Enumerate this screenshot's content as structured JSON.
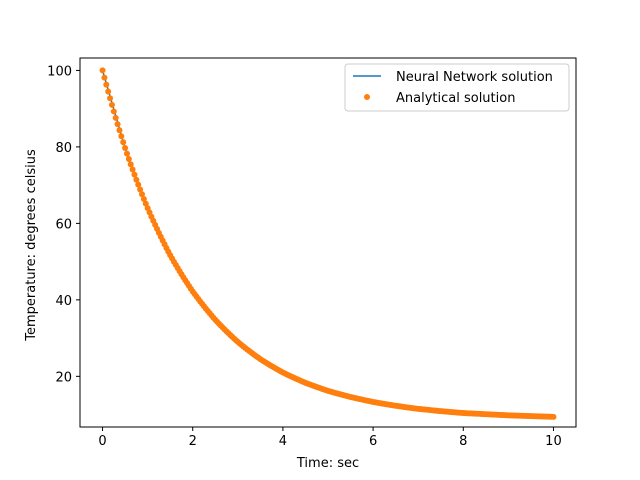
{
  "chart_data": {
    "type": "line",
    "title": "",
    "xlabel": "Time: sec",
    "ylabel": "Temperature: degrees celsius",
    "xlim": [
      -0.5,
      10.5
    ],
    "ylim": [
      6.75,
      103.25
    ],
    "x_ticks": [
      0,
      2,
      4,
      6,
      8,
      10
    ],
    "x_tick_labels": [
      "0",
      "2",
      "4",
      "6",
      "8",
      "10"
    ],
    "y_ticks": [
      20,
      40,
      60,
      80,
      100
    ],
    "y_tick_labels": [
      "20",
      "40",
      "60",
      "80",
      "100"
    ],
    "grid": false,
    "legend_position": "top-right",
    "colors": {
      "nn": "#1f77b4",
      "analytical": "#ff7f0e"
    },
    "series": [
      {
        "name": "Neural Network solution",
        "kind": "line",
        "x": [
          0,
          0.5,
          1,
          1.5,
          2,
          2.5,
          3,
          3.5,
          4,
          4.5,
          5,
          5.5,
          6,
          6.5,
          7,
          7.5,
          8,
          8.5,
          9,
          9.5,
          10
        ],
        "y": [
          100,
          79.7,
          64.0,
          51.7,
          42.2,
          34.8,
          29.0,
          24.5,
          21.0,
          18.3,
          16.2,
          14.6,
          13.3,
          12.3,
          11.5,
          10.9,
          10.4,
          10.1,
          9.8,
          9.6,
          9.4
        ]
      },
      {
        "name": "Analytical solution",
        "kind": "scatter",
        "x": [
          0,
          0.5,
          1,
          1.5,
          2,
          2.5,
          3,
          3.5,
          4,
          4.5,
          5,
          5.5,
          6,
          6.5,
          7,
          7.5,
          8,
          8.5,
          9,
          9.5,
          10
        ],
        "y": [
          100,
          79.7,
          64.0,
          51.7,
          42.2,
          34.8,
          29.0,
          24.5,
          21.0,
          18.3,
          16.2,
          14.6,
          13.3,
          12.3,
          11.5,
          10.9,
          10.4,
          10.1,
          9.8,
          9.6,
          9.4
        ]
      }
    ]
  }
}
